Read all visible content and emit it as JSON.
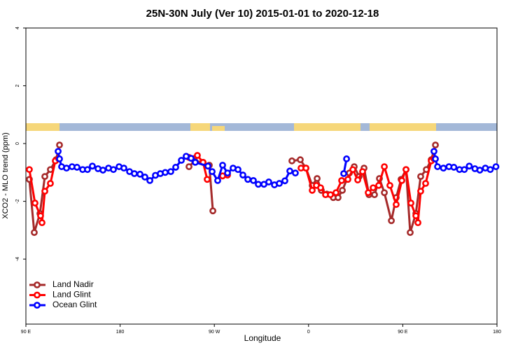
{
  "chart_data": {
    "type": "line",
    "title": "25N-30N July (Ver 10)   2015-01-01 to 2020-12-18",
    "xlabel": "Longitude",
    "ylabel": "XCO2 - MLO trend (ppm)",
    "xlim": [
      90,
      540
    ],
    "ylim": [
      -6.25,
      4
    ],
    "xticks": [
      {
        "value": 90,
        "label": "90 E"
      },
      180,
      {
        "value": 270,
        "label": "90 W"
      },
      {
        "value": 360,
        "label": "0"
      },
      {
        "value": 450,
        "label": "90 E"
      },
      {
        "value": 540,
        "label": "180"
      }
    ],
    "yticks": [
      -4,
      -2,
      0,
      2,
      4
    ],
    "legend": "lower left",
    "series": [
      {
        "name": "Land Nadir",
        "color": "#a52a2a",
        "x": [
          93.3,
          98,
          103.4,
          108.1,
          113.4,
          118.8,
          122.1,
          null,
          245.8,
          251.2,
          259.2,
          265.2,
          268.6,
          null,
          344.1,
          352.1,
          357.5,
          363.5,
          368.2,
          372.2,
          377.5,
          383.6,
          388.2,
          392.3,
          399,
          403.6,
          408.3,
          413,
          417.7,
          423,
          427.7,
          432.4,
          439.1,
          443.7,
          448.4,
          453.1,
          457.1,
          462.5,
          467.1,
          472.5,
          477.2,
          481.2
        ],
        "values": [
          -1.24,
          -3.08,
          -2.42,
          -1.14,
          -0.9,
          -0.56,
          -0.05,
          null,
          -0.8,
          -0.6,
          -0.65,
          -0.75,
          -2.33,
          null,
          -0.6,
          -0.56,
          -0.85,
          -1.45,
          -1.21,
          -1.62,
          -1.75,
          -1.87,
          -1.87,
          -1.62,
          -1.02,
          -0.8,
          -1.14,
          -0.85,
          -1.77,
          -1.77,
          -1.21,
          -1.7,
          -2.67,
          -1.87,
          -1.24,
          -0.9,
          -3.08,
          -2.42,
          -1.14,
          -0.9,
          -0.56,
          -0.05
        ]
      },
      {
        "name": "Land Glint",
        "color": "#ff0000",
        "x": [
          93.3,
          98.7,
          104,
          105.4,
          108.1,
          113.4,
          118.1,
          121.4,
          null,
          245.8,
          253.8,
          259.2,
          263.2,
          null,
          277.9,
          282.6,
          null,
          352.8,
          357.5,
          363.5,
          367.5,
          371.5,
          376.2,
          380.9,
          386.2,
          391.6,
          397.6,
          402.3,
          407,
          411.6,
          417,
          421.7,
          427,
          432.4,
          437.7,
          443.7,
          449.1,
          453.1,
          457.8,
          462.5,
          464.5,
          467.1,
          471.8,
          477.2,
          479.8
        ],
        "values": [
          -0.9,
          -2.06,
          -2.5,
          -2.74,
          -1.65,
          -1.38,
          -0.6,
          -0.53,
          null,
          -0.48,
          -0.41,
          -0.65,
          -1.24,
          null,
          -1.12,
          -1.09,
          null,
          -0.85,
          -0.85,
          -1.62,
          -1.45,
          -1.53,
          -1.77,
          -1.77,
          -1.7,
          -1.28,
          -1.24,
          -0.9,
          -1.26,
          -0.97,
          -1.7,
          -1.53,
          -1.45,
          -0.8,
          -1.45,
          -2.11,
          -1.28,
          -0.9,
          -2.06,
          -2.5,
          -2.74,
          -1.65,
          -1.38,
          -0.6,
          -0.53
        ]
      },
      {
        "name": "Ocean Glint",
        "color": "#0000ff",
        "x": [
          120.8,
          122.1,
          124.1,
          128.8,
          134.1,
          138.8,
          144.2,
          148.8,
          153.5,
          158.9,
          163.6,
          168.9,
          173.6,
          179,
          183.6,
          189,
          193.6,
          199,
          203.7,
          208.4,
          213.7,
          218.4,
          223.1,
          228.4,
          233.1,
          238.5,
          243.1,
          247.8,
          251.8,
          263.9,
          267.9,
          273.2,
          277.9,
          282.6,
          287.9,
          292.6,
          297.3,
          302,
          307.3,
          312,
          317.4,
          322,
          327.4,
          332.1,
          337.4,
          342.1,
          347.4,
          null,
          393.6,
          396.3,
          null,
          479.8,
          481.2,
          483.2,
          488.8,
          494.1,
          498.8,
          504.2,
          508.8,
          513.5,
          518.9,
          523.6,
          528.9,
          533.6,
          539
        ],
        "values": [
          -0.27,
          -0.53,
          -0.8,
          -0.85,
          -0.8,
          -0.82,
          -0.9,
          -0.9,
          -0.78,
          -0.87,
          -0.92,
          -0.85,
          -0.9,
          -0.8,
          -0.85,
          -0.97,
          -1.04,
          -1.06,
          -1.16,
          -1.28,
          -1.1,
          -1.04,
          -1,
          -0.97,
          -0.82,
          -0.58,
          -0.44,
          -0.51,
          -0.65,
          -0.78,
          -0.97,
          -1.28,
          -0.75,
          -1.02,
          -0.85,
          -0.9,
          -1.09,
          -1.24,
          -1.28,
          -1.41,
          -1.41,
          -1.33,
          -1.43,
          -1.38,
          -1.29,
          -0.95,
          -1.02,
          null,
          -1.04,
          -0.53,
          null,
          -0.27,
          -0.53,
          -0.8,
          -0.85,
          -0.8,
          -0.82,
          -0.9,
          -0.9,
          -0.78,
          -0.87,
          -0.92,
          -0.85,
          -0.9,
          -0.8
        ]
      }
    ]
  }
}
